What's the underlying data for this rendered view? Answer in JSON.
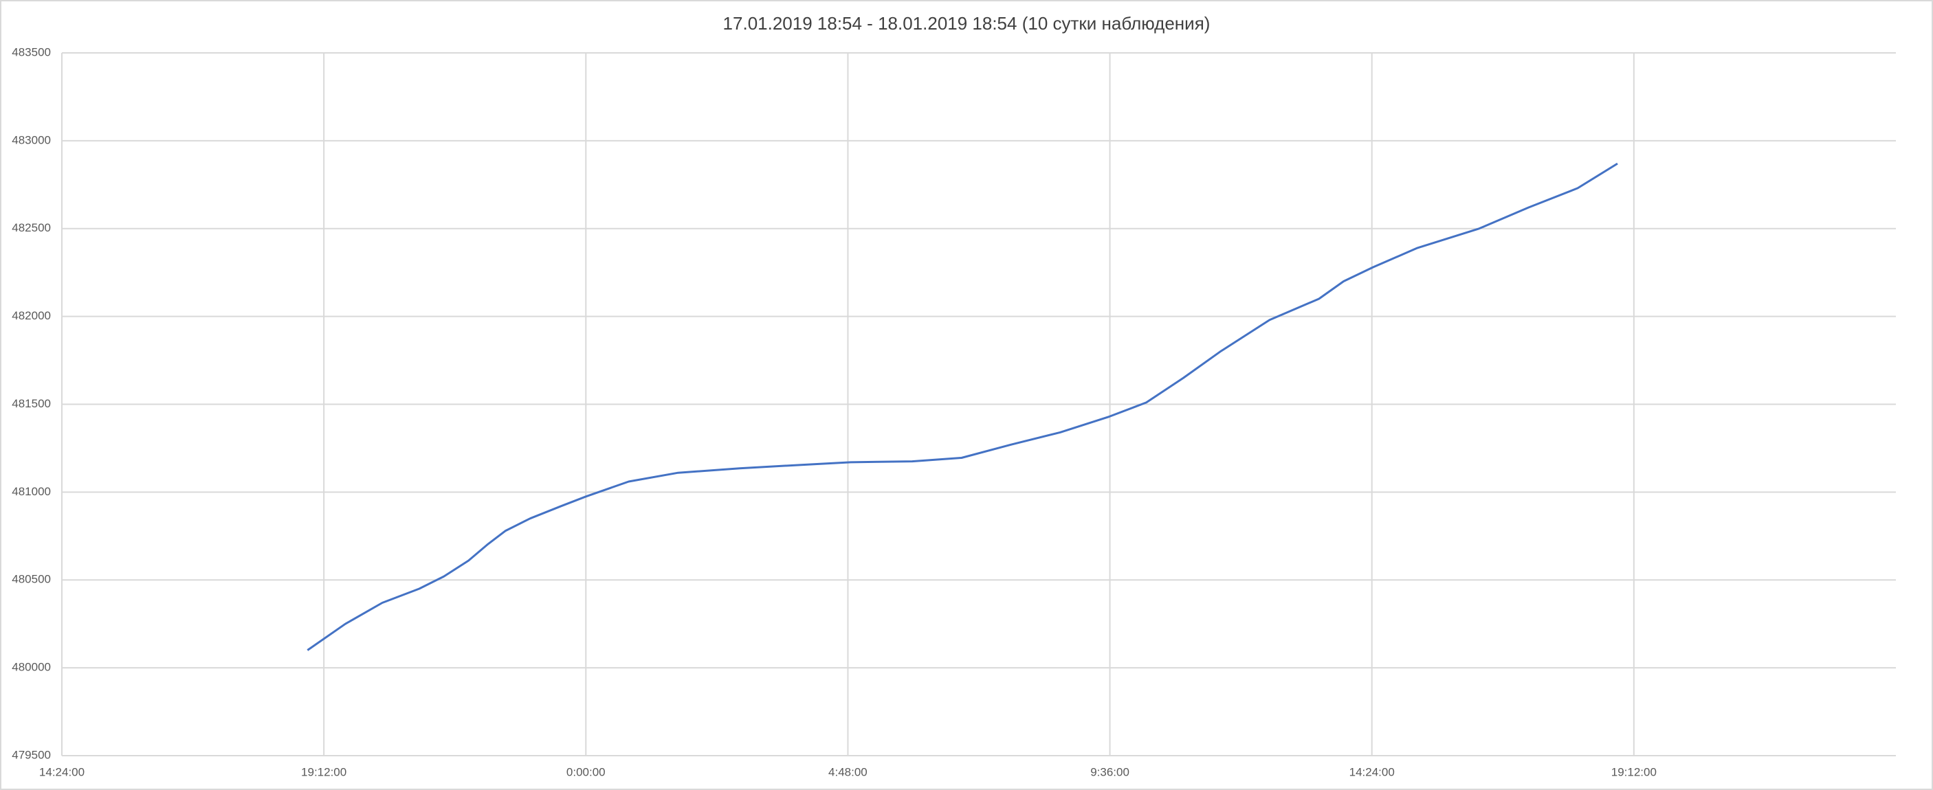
{
  "chart_data": {
    "type": "line",
    "title": "17.01.2019 18:54 - 18.01.2019 18:54 (10 сутки наблюдения)",
    "x": [
      0.7875,
      0.8164,
      0.8446,
      0.8728,
      0.8916,
      0.9104,
      0.9246,
      0.9387,
      0.9575,
      0.981,
      1.0,
      1.0327,
      1.0704,
      1.1174,
      1.1644,
      1.2021,
      1.2491,
      1.2867,
      1.3244,
      1.362,
      1.3996,
      1.4278,
      1.4561,
      1.4843,
      1.5219,
      1.5596,
      1.5784,
      1.6009,
      1.6348,
      1.6818,
      1.7195,
      1.7571,
      1.7875
    ],
    "series": [
      {
        "color": "#4472c4",
        "values": [
          480100,
          480250,
          480370,
          480450,
          480520,
          480610,
          480700,
          480780,
          480850,
          480920,
          480975,
          481060,
          481110,
          481135,
          481155,
          481170,
          481175,
          481195,
          481270,
          481340,
          481430,
          481510,
          481650,
          481800,
          481980,
          482100,
          482200,
          482280,
          482390,
          482500,
          482620,
          482730,
          482870
        ]
      }
    ],
    "xlim": [
      0.6,
      2.0
    ],
    "xticks": [
      {
        "value": 0.6,
        "label": "14:24:00"
      },
      {
        "value": 0.8,
        "label": "19:12:00"
      },
      {
        "value": 1.0,
        "label": "0:00:00"
      },
      {
        "value": 1.2,
        "label": "4:48:00"
      },
      {
        "value": 1.4,
        "label": "9:36:00"
      },
      {
        "value": 1.6,
        "label": "14:24:00"
      },
      {
        "value": 1.8,
        "label": "19:12:00"
      }
    ],
    "ylim": [
      479500,
      483500
    ],
    "yticks": [
      479500,
      480000,
      480500,
      481000,
      481500,
      482000,
      482500,
      483000,
      483500
    ],
    "grid": true
  }
}
